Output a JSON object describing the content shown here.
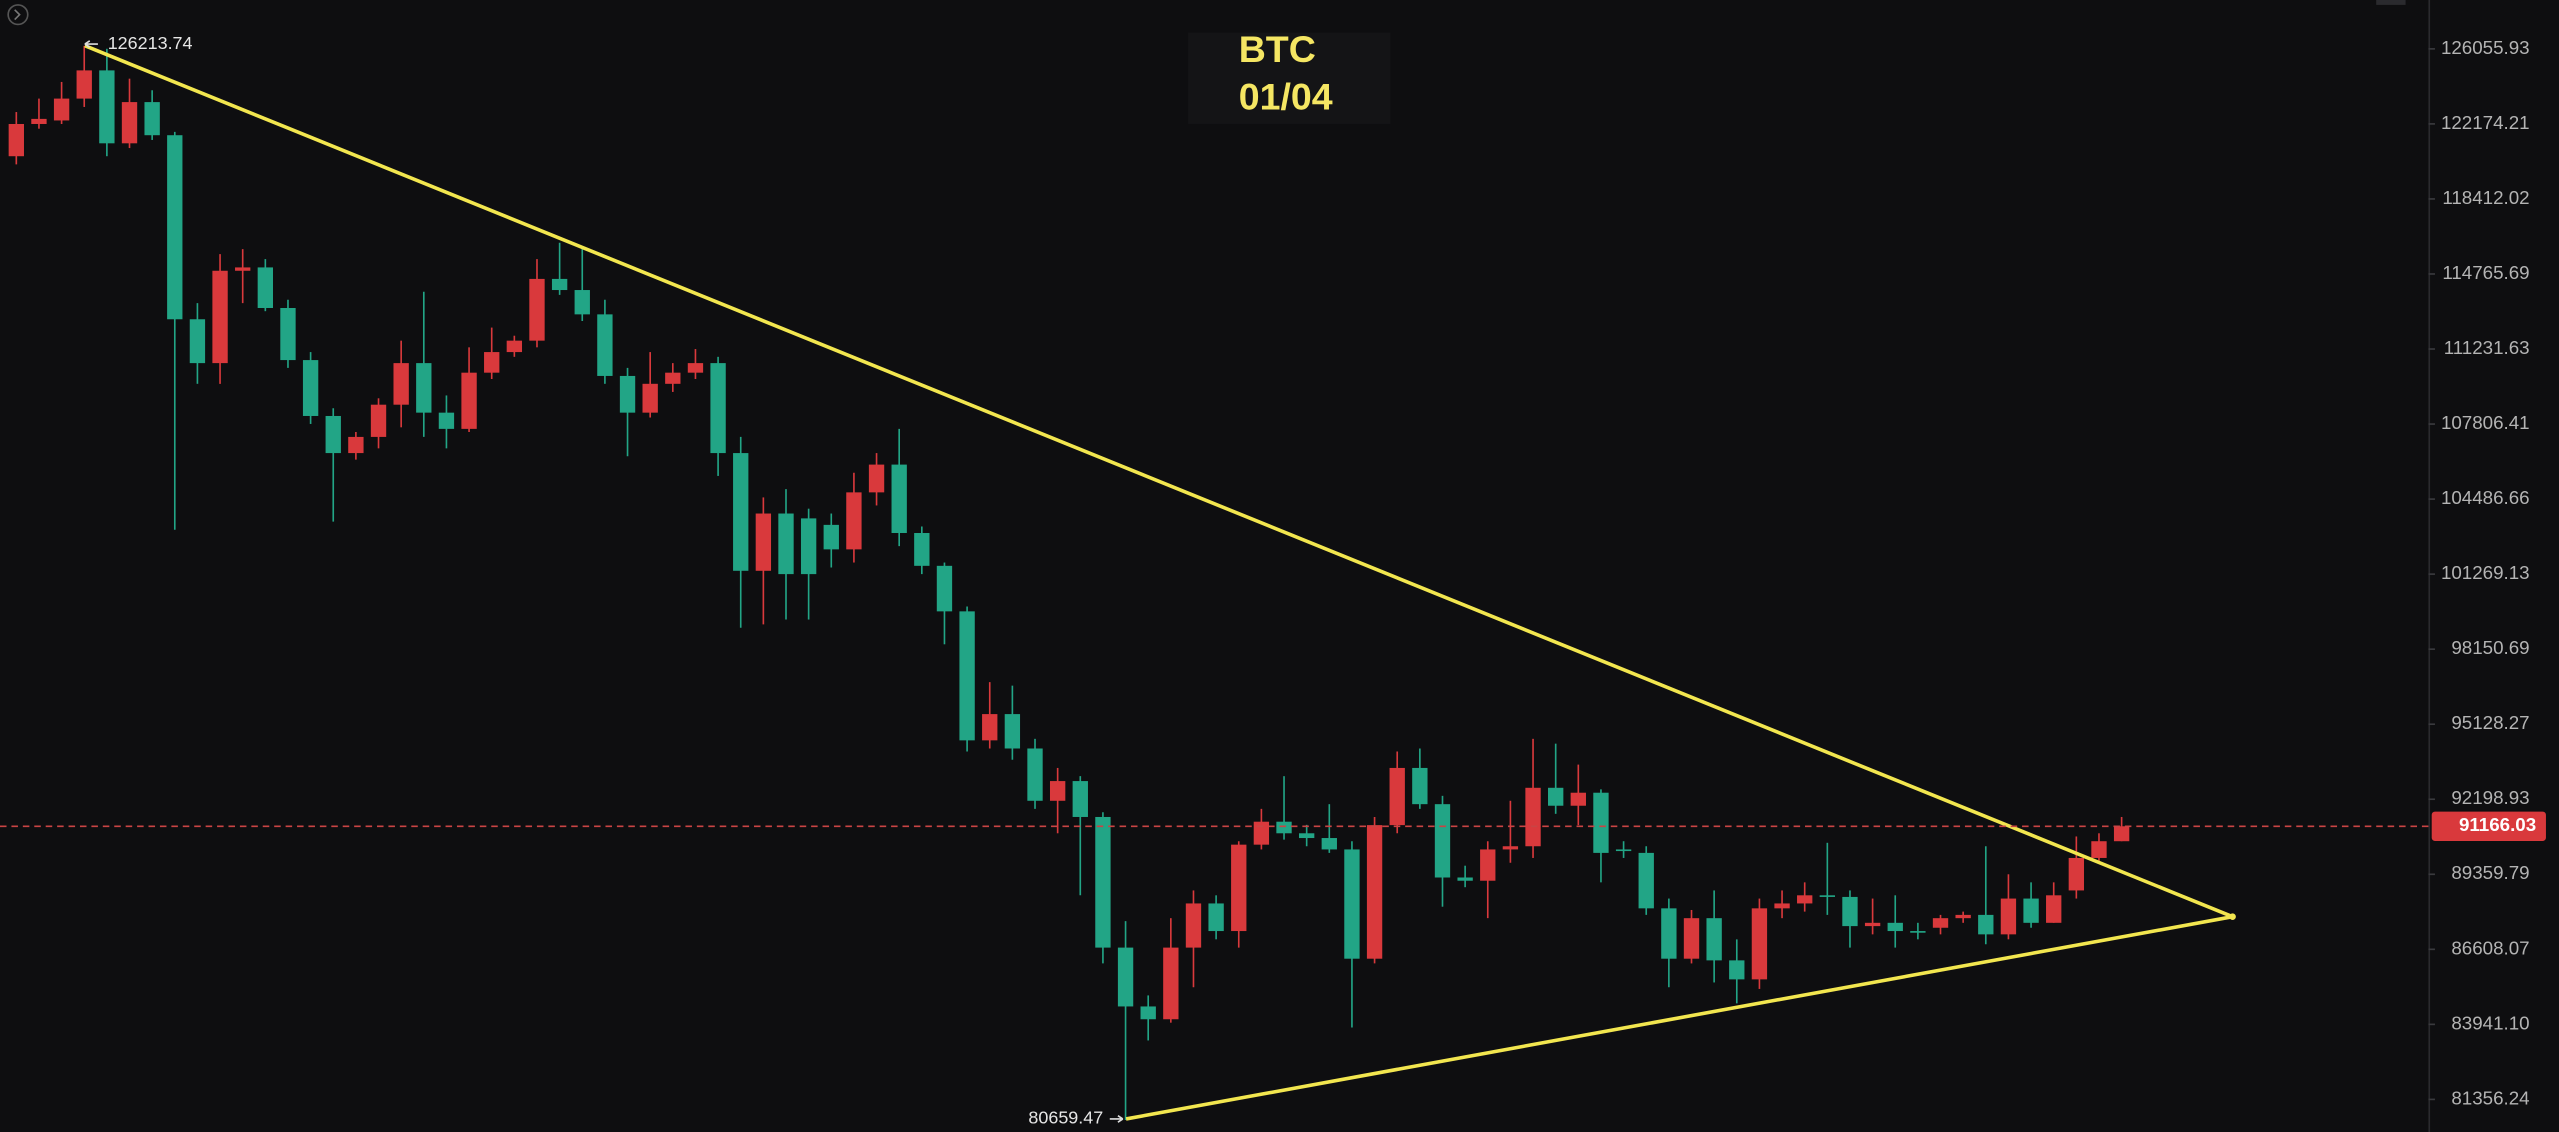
{
  "chart_data": {
    "type": "candlestick",
    "title": "BTC",
    "subtitle": "01/04",
    "log_scale": true,
    "grid": false,
    "up_color": "#d9393c",
    "down_color": "#22a586",
    "ylim": [
      80258,
      128650
    ],
    "yticks": [
      126055.93,
      122174.21,
      118412.02,
      114765.69,
      111231.63,
      107806.41,
      104486.66,
      101269.13,
      98150.69,
      95128.27,
      92198.93,
      89359.79,
      86608.07,
      {
        "value": 83941.1,
        "label": "83941.10"
      },
      81356.24
    ],
    "open": [
      120540,
      122170,
      122350,
      123470,
      124930,
      121190,
      123290,
      121600,
      112620,
      110580,
      114920,
      115080,
      113150,
      110720,
      108170,
      106510,
      107230,
      108680,
      110580,
      108320,
      107590,
      110140,
      111090,
      111620,
      114530,
      114000,
      112850,
      109990,
      108320,
      109630,
      110140,
      110580,
      106510,
      101410,
      103860,
      103650,
      103370,
      102320,
      104780,
      106000,
      103020,
      101620,
      99710,
      94490,
      95530,
      94170,
      92140,
      92900,
      91520,
      86670,
      84570,
      84120,
      86670,
      88280,
      87270,
      90470,
      91340,
      90900,
      90720,
      90290,
      86270,
      91210,
      93410,
      92010,
      89240,
      89120,
      90290,
      90410,
      92640,
      91950,
      92450,
      90290,
      90160,
      88100,
      86270,
      87740,
      86210,
      85530,
      88100,
      88280,
      88580,
      88520,
      87450,
      87570,
      87270,
      87390,
      87740,
      87860,
      87150,
      88460,
      87570,
      88760,
      89970,
      90600
    ],
    "high": [
      122780,
      123470,
      124330,
      126213.74,
      126060,
      124500,
      123900,
      121770,
      113380,
      115720,
      115960,
      115480,
      113540,
      111090,
      108520,
      107450,
      108970,
      111620,
      113920,
      109100,
      111310,
      112230,
      111850,
      115480,
      116270,
      116110,
      113540,
      110360,
      111090,
      110580,
      111230,
      110870,
      107230,
      104560,
      104920,
      104070,
      103860,
      105640,
      106510,
      107590,
      103300,
      101760,
      99910,
      96810,
      96670,
      94550,
      93410,
      93090,
      91700,
      87630,
      84960,
      87740,
      88760,
      88580,
      90600,
      91830,
      93090,
      91220,
      92010,
      90600,
      91520,
      94050,
      94170,
      92330,
      89680,
      90600,
      92140,
      94550,
      94360,
      93540,
      92580,
      90600,
      90410,
      88460,
      88040,
      88760,
      86970,
      88460,
      88760,
      89060,
      90540,
      88760,
      88460,
      88580,
      87570,
      87860,
      87980,
      90410,
      89360,
      89060,
      89060,
      90780,
      90900,
      91520
    ],
    "low": [
      120130,
      121930,
      122170,
      123040,
      120540,
      120950,
      121360,
      103160,
      109630,
      109630,
      113380,
      113000,
      110360,
      107810,
      103510,
      106220,
      106720,
      107660,
      107230,
      106720,
      107450,
      109850,
      110870,
      111310,
      113770,
      112540,
      109630,
      106370,
      108100,
      109260,
      109850,
      105500,
      99030,
      99170,
      99370,
      99370,
      101550,
      101760,
      104210,
      102460,
      101270,
      98350,
      94050,
      94170,
      93730,
      91830,
      90900,
      88580,
      86100,
      80659.47,
      83380,
      84000,
      85250,
      86970,
      86670,
      90290,
      90660,
      90410,
      90160,
      83830,
      86100,
      90900,
      91830,
      88160,
      88880,
      87740,
      89790,
      89970,
      91640,
      91210,
      89060,
      89970,
      87860,
      85250,
      86100,
      85420,
      84680,
      85190,
      87740,
      87980,
      87860,
      86670,
      87150,
      86670,
      86970,
      87150,
      87570,
      86790,
      86970,
      87390,
      87570,
      88460,
      89790,
      90600
    ],
    "close": [
      122170,
      122430,
      123470,
      124930,
      121190,
      123290,
      121600,
      112620,
      110580,
      114920,
      115080,
      113150,
      110720,
      108170,
      106510,
      107230,
      108680,
      110580,
      108320,
      107590,
      110140,
      111090,
      111620,
      114530,
      114000,
      112850,
      109990,
      108320,
      109630,
      110140,
      110580,
      106510,
      101410,
      103860,
      101270,
      101270,
      102320,
      104780,
      106000,
      103020,
      101620,
      99710,
      94490,
      95530,
      94170,
      92140,
      92900,
      91520,
      86670,
      84570,
      84120,
      86670,
      88280,
      87270,
      90470,
      91340,
      90900,
      90720,
      90290,
      86270,
      91210,
      93410,
      92010,
      89240,
      89120,
      90290,
      90410,
      92640,
      91950,
      92450,
      90160,
      90230,
      88100,
      86270,
      87740,
      86210,
      85530,
      88100,
      88280,
      88580,
      88520,
      87450,
      87570,
      87270,
      87210,
      87740,
      87860,
      87150,
      88460,
      87570,
      88580,
      89970,
      90600,
      91166.03
    ]
  }
}
